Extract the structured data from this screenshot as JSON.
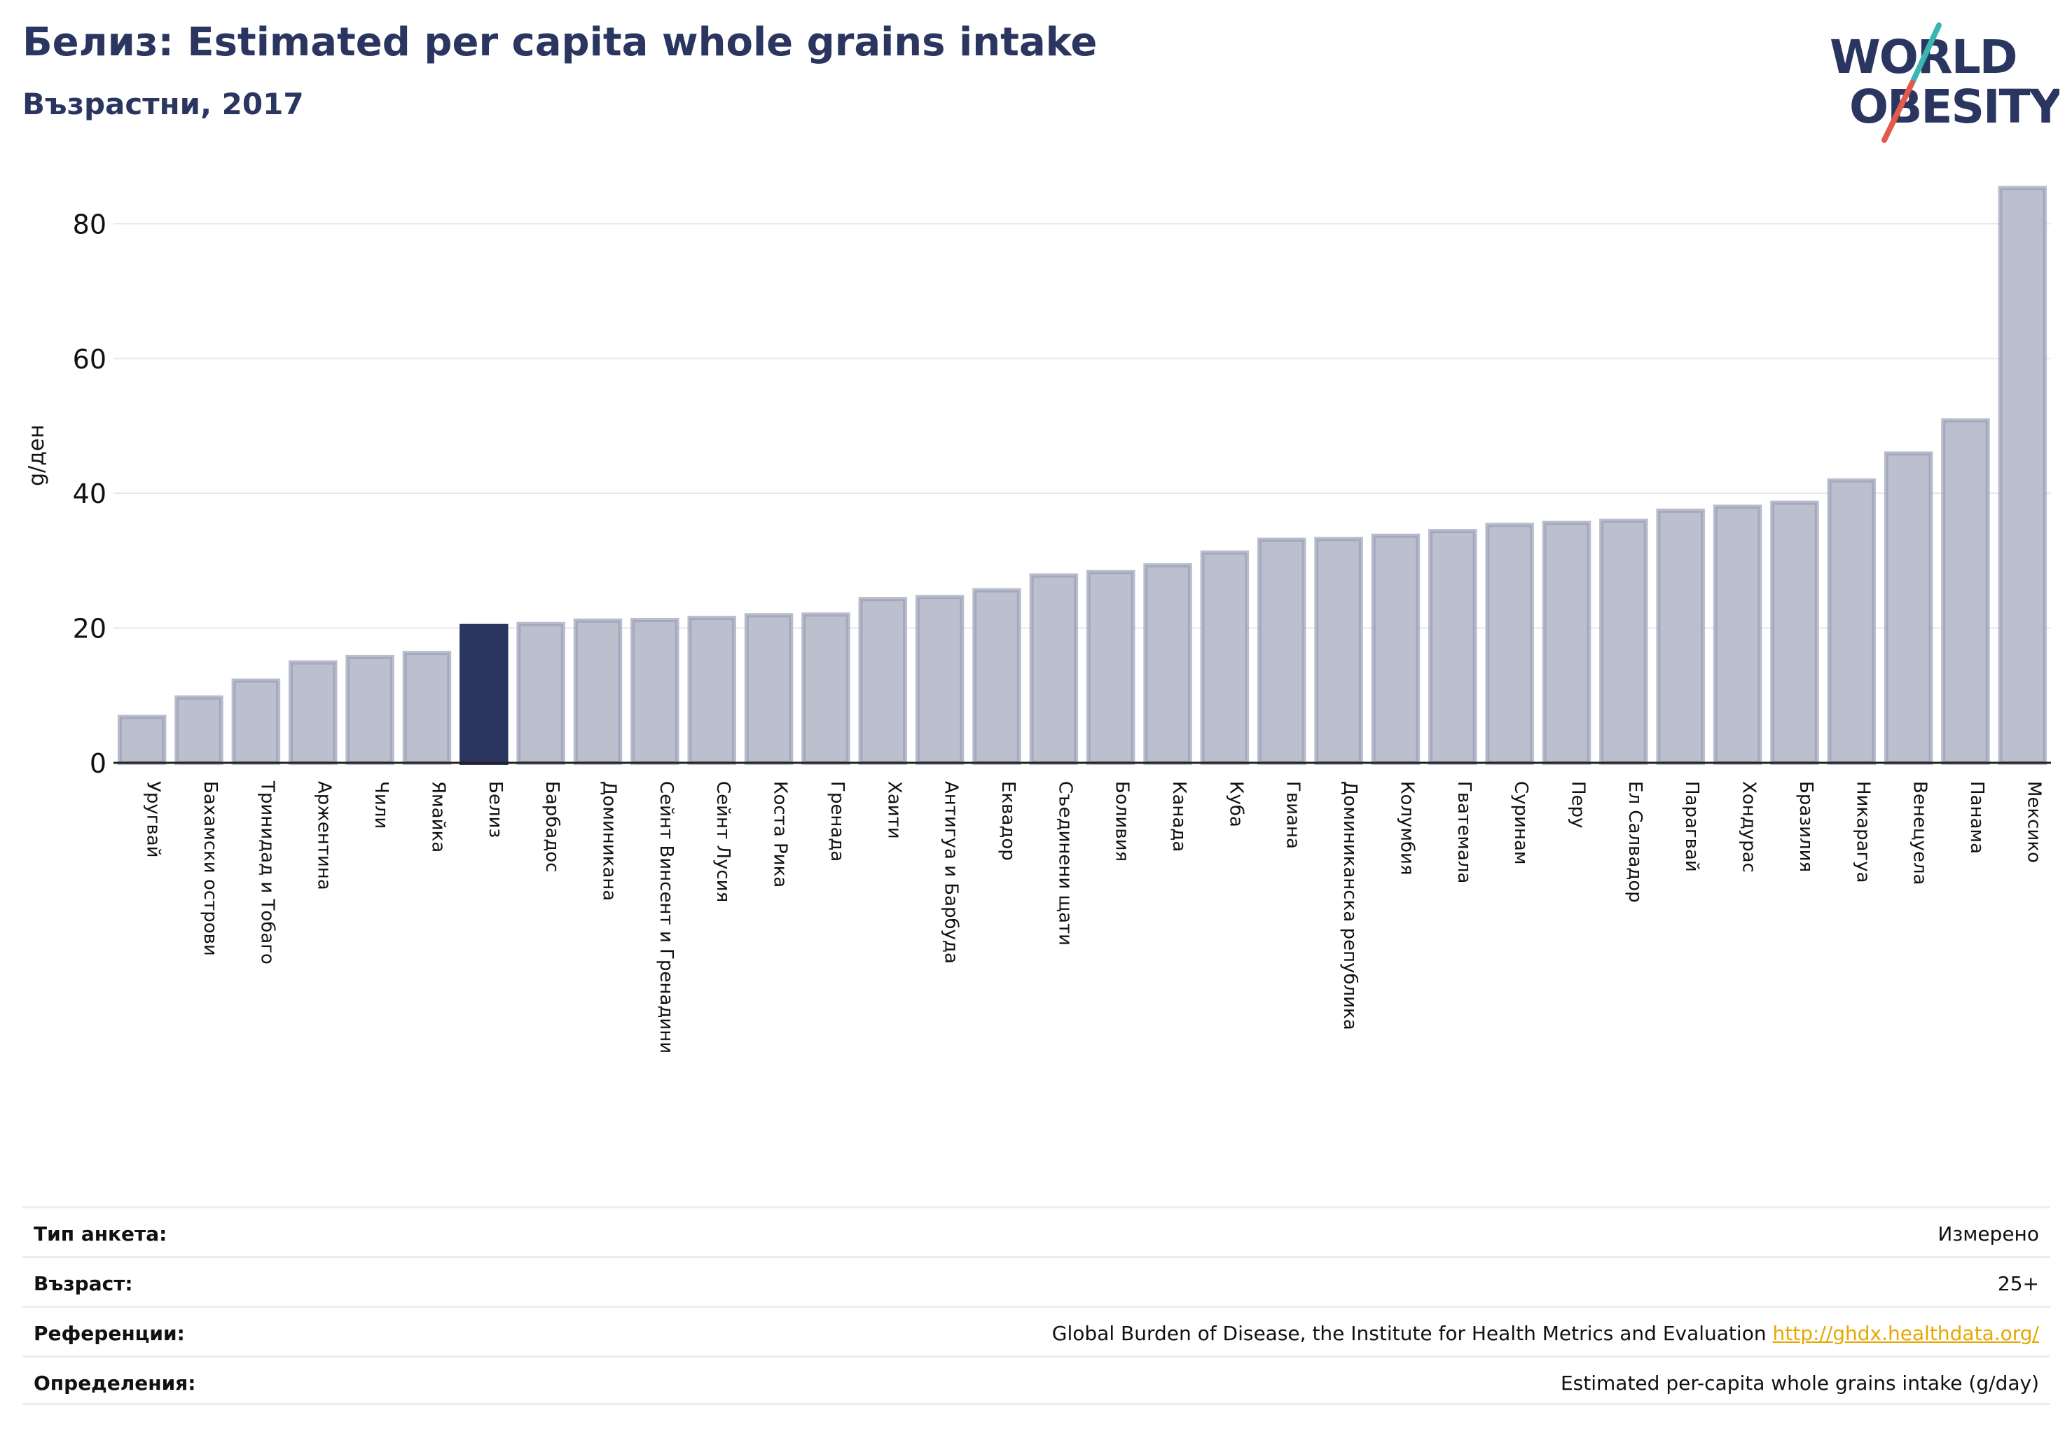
{
  "header": {
    "title": "Белиз: Estimated per capita whole grains intake",
    "subtitle": "Възрастни, 2017"
  },
  "logo": {
    "line1": "WORLD",
    "line2": "OBESITY"
  },
  "colors": {
    "highlight": "#2a3560",
    "bar": "#bcc0ce",
    "bar_stroke": "#9a9fb6",
    "title": "#2a3560",
    "accent_teal": "#3ab5b0",
    "accent_red": "#e05a4e"
  },
  "chart_data": {
    "type": "bar",
    "ylabel": "g/ден",
    "ylim": [
      0,
      87
    ],
    "yticks": [
      0,
      20,
      40,
      60,
      80
    ],
    "grid": true,
    "highlight": "Белиз",
    "categories": [
      "Уругвай",
      "Бахамски острови",
      "Тринидад и Тобаго",
      "Аржентина",
      "Чили",
      "Ямайка",
      "Белиз",
      "Барбадос",
      "Доминикана",
      "Сейнт Винсент и Гренадини",
      "Сейнт Лусия",
      "Коста Рика",
      "Гренада",
      "Хаити",
      "Антигуа и Барбуда",
      "Еквадор",
      "Съединени щати",
      "Боливия",
      "Канада",
      "Куба",
      "Гвиана",
      "Доминиканска република",
      "Колумбия",
      "Гватемала",
      "Суринам",
      "Перу",
      "Ел Салвадор",
      "Парагвай",
      "Хондурас",
      "Бразилия",
      "Никарагуа",
      "Венецуела",
      "Панама",
      "Мексико"
    ],
    "values": [
      6.8,
      9.7,
      12.2,
      14.9,
      15.7,
      16.3,
      20.3,
      20.6,
      21.1,
      21.2,
      21.5,
      21.9,
      22.0,
      24.3,
      24.6,
      25.6,
      27.8,
      28.3,
      29.3,
      31.2,
      33.1,
      33.2,
      33.7,
      34.4,
      35.3,
      35.6,
      35.9,
      37.4,
      38.0,
      38.6,
      41.9,
      45.9,
      50.8,
      85.3
    ]
  },
  "meta": [
    {
      "key": "Тип анкета:",
      "value": "Измерено",
      "link": ""
    },
    {
      "key": "Възраст:",
      "value": "25+",
      "link": ""
    },
    {
      "key": "Референции:",
      "value": "Global Burden of Disease, the Institute for Health Metrics and Evaluation",
      "link": "http://ghdx.healthdata.org/"
    },
    {
      "key": "Определения:",
      "value": "Estimated per-capita whole grains intake (g/day)",
      "link": ""
    }
  ]
}
